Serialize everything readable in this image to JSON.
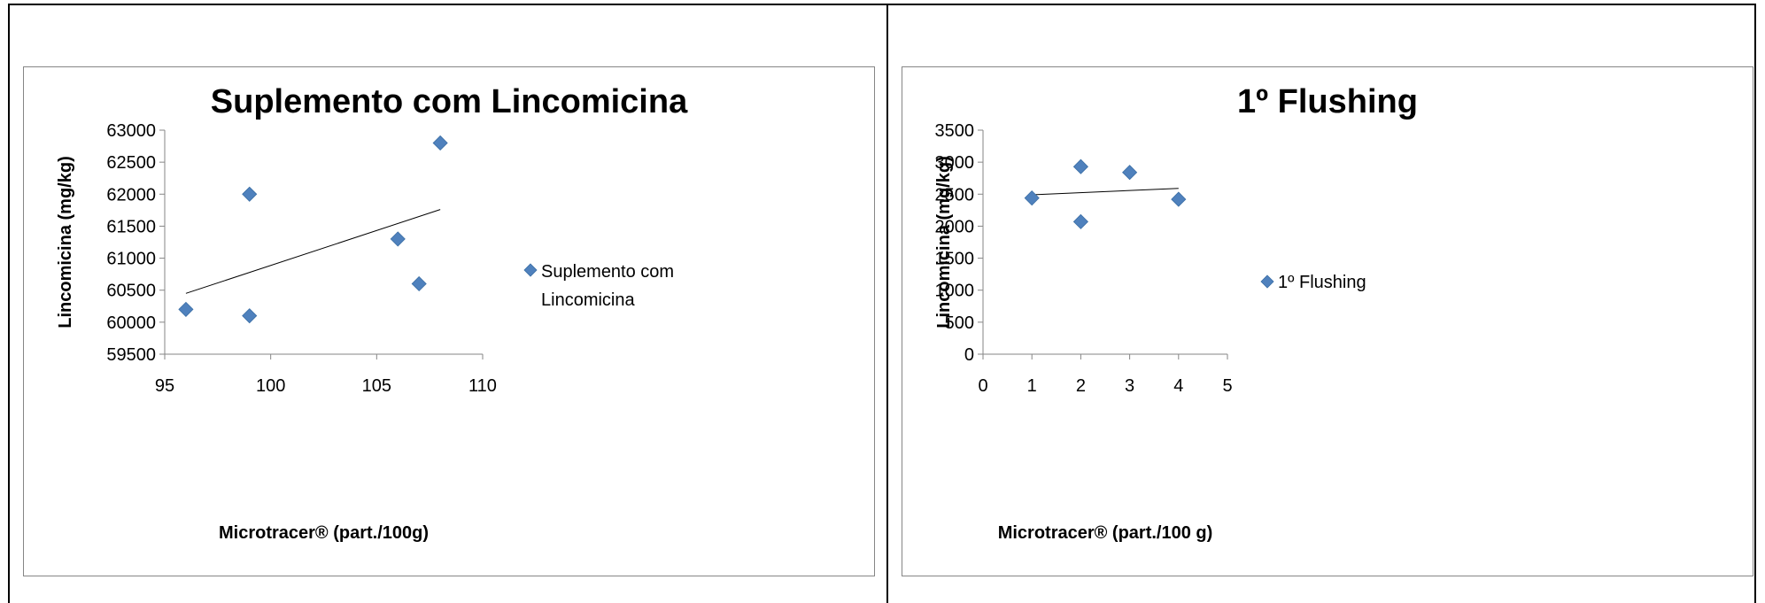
{
  "chart_data": [
    {
      "type": "scatter",
      "title": "Suplemento com Lincomicina",
      "xlabel": "Microtracer® (part./100g)",
      "ylabel": "Lincomicina (mg/kg)",
      "xlim": [
        95,
        110
      ],
      "ylim": [
        59500,
        63000
      ],
      "xticks": [
        95,
        100,
        105,
        110
      ],
      "yticks": [
        59500,
        60000,
        60500,
        61000,
        61500,
        62000,
        62500,
        63000
      ],
      "series": [
        {
          "name": "Suplemento com Lincomicina",
          "color": "#4F81BD",
          "x": [
            96,
            99,
            99,
            106,
            107,
            108
          ],
          "y": [
            60200,
            62000,
            60100,
            61300,
            60600,
            62800
          ]
        }
      ],
      "trendline": {
        "type": "linear",
        "x": [
          96,
          108
        ],
        "y": [
          60450,
          61760
        ]
      },
      "legend": "right",
      "grid": false
    },
    {
      "type": "scatter",
      "title": "1º Flushing",
      "xlabel": "Microtracer® (part./100 g)",
      "ylabel": "Lincomicina (mg/kg)",
      "xlim": [
        0,
        5
      ],
      "ylim": [
        0,
        3500
      ],
      "xticks": [
        0,
        1,
        2,
        3,
        4,
        5
      ],
      "yticks": [
        0,
        500,
        1000,
        1500,
        2000,
        2500,
        3000,
        3500
      ],
      "series": [
        {
          "name": "1º Flushing",
          "color": "#4F81BD",
          "x": [
            1,
            2,
            2,
            3,
            4
          ],
          "y": [
            2440,
            2930,
            2070,
            2840,
            2420
          ]
        }
      ],
      "trendline": {
        "type": "linear",
        "x": [
          1,
          4
        ],
        "y": [
          2490,
          2590
        ]
      },
      "legend": "right",
      "grid": false
    }
  ]
}
